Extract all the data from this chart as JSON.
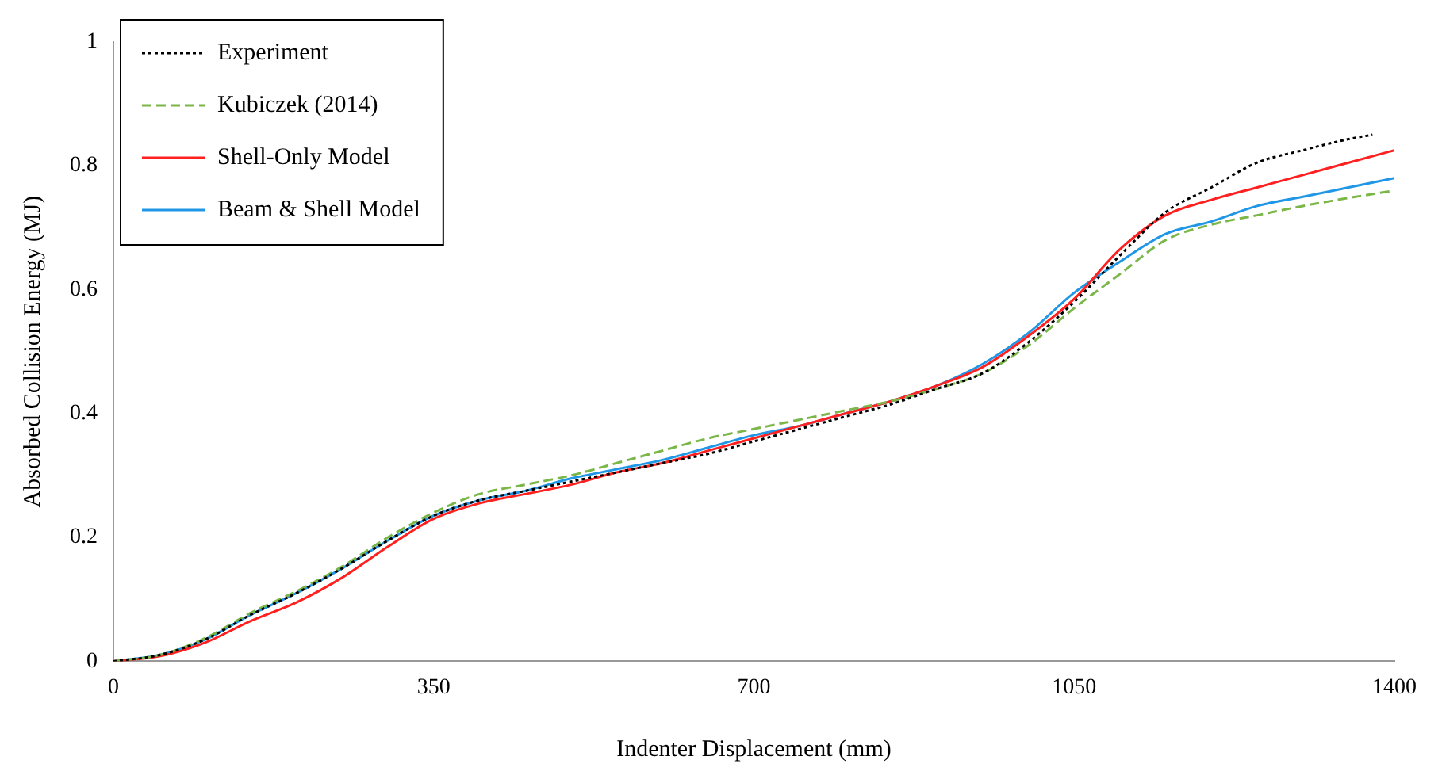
{
  "chart_data": {
    "type": "line",
    "xlabel": "Indenter Displacement (mm)",
    "ylabel": "Absorbed Collision Energy (MJ)",
    "x": [
      0,
      50,
      100,
      150,
      200,
      250,
      300,
      350,
      400,
      450,
      500,
      550,
      600,
      650,
      700,
      750,
      800,
      850,
      900,
      950,
      1000,
      1050,
      1100,
      1150,
      1200,
      1250,
      1300,
      1350,
      1400
    ],
    "series": [
      {
        "name": "Experiment",
        "color": "#000000",
        "line_style": "dotted",
        "x": [
          0,
          50,
          100,
          150,
          200,
          250,
          300,
          350,
          400,
          450,
          500,
          550,
          600,
          650,
          700,
          750,
          800,
          850,
          900,
          950,
          1000,
          1050,
          1100,
          1150,
          1200,
          1250,
          1300,
          1350,
          1376
        ],
        "values": [
          0,
          0.01,
          0.035,
          0.075,
          0.11,
          0.15,
          0.195,
          0.235,
          0.26,
          0.275,
          0.29,
          0.305,
          0.32,
          0.335,
          0.355,
          0.375,
          0.395,
          0.415,
          0.44,
          0.465,
          0.515,
          0.58,
          0.655,
          0.725,
          0.765,
          0.805,
          0.825,
          0.843,
          0.85
        ]
      },
      {
        "name": "Kubiczek (2014)",
        "color": "#7ab648",
        "line_style": "dashed",
        "values": [
          0,
          0.01,
          0.037,
          0.078,
          0.113,
          0.153,
          0.2,
          0.24,
          0.27,
          0.285,
          0.3,
          0.32,
          0.34,
          0.36,
          0.375,
          0.39,
          0.405,
          0.42,
          0.44,
          0.465,
          0.51,
          0.57,
          0.625,
          0.68,
          0.705,
          0.72,
          0.735,
          0.748,
          0.76
        ]
      },
      {
        "name": "Shell-Only Model",
        "color": "#ff2020",
        "line_style": "solid",
        "values": [
          0,
          0.008,
          0.03,
          0.065,
          0.095,
          0.135,
          0.185,
          0.23,
          0.255,
          0.27,
          0.285,
          0.305,
          0.32,
          0.34,
          0.36,
          0.38,
          0.4,
          0.42,
          0.445,
          0.475,
          0.525,
          0.585,
          0.665,
          0.72,
          0.745,
          0.765,
          0.785,
          0.805,
          0.825
        ]
      },
      {
        "name": "Beam & Shell Model",
        "color": "#1f96e6",
        "line_style": "solid",
        "values": [
          0,
          0.01,
          0.035,
          0.075,
          0.11,
          0.15,
          0.195,
          0.235,
          0.26,
          0.275,
          0.295,
          0.31,
          0.325,
          0.345,
          0.365,
          0.38,
          0.4,
          0.42,
          0.445,
          0.48,
          0.53,
          0.595,
          0.645,
          0.69,
          0.71,
          0.735,
          0.75,
          0.765,
          0.78
        ]
      }
    ],
    "xlim": [
      0,
      1400
    ],
    "xticks": [
      0,
      350,
      700,
      1050,
      1400
    ],
    "ylim": [
      0,
      1
    ],
    "yticks": [
      0,
      0.2,
      0.4,
      0.6,
      0.8,
      1
    ],
    "grid": false,
    "legend": "top left",
    "marker": "none"
  }
}
